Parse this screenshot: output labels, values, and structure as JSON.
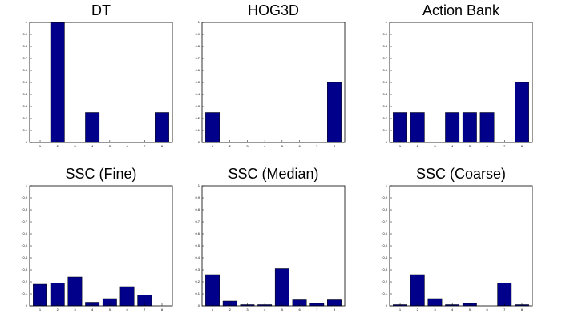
{
  "chart_data": [
    {
      "type": "bar",
      "title": "DT",
      "x": [
        1,
        2,
        3,
        4,
        5,
        6,
        7,
        8
      ],
      "values": [
        0,
        1,
        0,
        0.25,
        0,
        0,
        0,
        0.25
      ],
      "color": "#00008b",
      "xlim": [
        0.4,
        8.6
      ],
      "xticks": [
        1,
        2,
        3,
        4,
        5,
        6,
        7,
        8
      ],
      "ylim": [
        0,
        1
      ],
      "yticks": [
        0,
        0.1,
        0.2,
        0.3,
        0.4,
        0.5,
        0.6,
        0.7,
        0.8,
        0.9,
        1
      ]
    },
    {
      "type": "bar",
      "title": "HOG3D",
      "x": [
        1,
        2,
        3,
        4,
        5,
        6,
        7,
        8
      ],
      "values": [
        0.25,
        0,
        0,
        0,
        0,
        0,
        0,
        0.5
      ],
      "color": "#00008b",
      "xlim": [
        0.4,
        8.6
      ],
      "xticks": [
        1,
        2,
        3,
        4,
        5,
        6,
        7,
        8
      ],
      "ylim": [
        0,
        1
      ],
      "yticks": [
        0,
        0.1,
        0.2,
        0.3,
        0.4,
        0.5,
        0.6,
        0.7,
        0.8,
        0.9,
        1
      ]
    },
    {
      "type": "bar",
      "title": "Action Bank",
      "x": [
        1,
        2,
        3,
        4,
        5,
        6,
        7,
        8
      ],
      "values": [
        0.25,
        0.25,
        0,
        0.25,
        0.25,
        0.25,
        0,
        0.5
      ],
      "color": "#00008b",
      "xlim": [
        0.4,
        8.6
      ],
      "xticks": [
        1,
        2,
        3,
        4,
        5,
        6,
        7,
        8
      ],
      "ylim": [
        0,
        1
      ],
      "yticks": [
        0,
        0.1,
        0.2,
        0.3,
        0.4,
        0.5,
        0.6,
        0.7,
        0.8,
        0.9,
        1
      ]
    },
    {
      "type": "bar",
      "title": "SSC (Fine)",
      "x": [
        1,
        2,
        3,
        4,
        5,
        6,
        7,
        8
      ],
      "values": [
        0.18,
        0.19,
        0.24,
        0.03,
        0.06,
        0.16,
        0.09,
        0
      ],
      "color": "#00008b",
      "xlim": [
        0.4,
        8.6
      ],
      "xticks": [
        1,
        2,
        3,
        4,
        5,
        6,
        7,
        8
      ],
      "ylim": [
        0,
        1
      ],
      "yticks": [
        0,
        0.1,
        0.2,
        0.3,
        0.4,
        0.5,
        0.6,
        0.7,
        0.8,
        0.9,
        1
      ]
    },
    {
      "type": "bar",
      "title": "SSC (Median)",
      "x": [
        1,
        2,
        3,
        4,
        5,
        6,
        7,
        8
      ],
      "values": [
        0.26,
        0.04,
        0.01,
        0.01,
        0.31,
        0.05,
        0.02,
        0.05
      ],
      "color": "#00008b",
      "xlim": [
        0.4,
        8.6
      ],
      "xticks": [
        1,
        2,
        3,
        4,
        5,
        6,
        7,
        8
      ],
      "ylim": [
        0,
        1
      ],
      "yticks": [
        0,
        0.1,
        0.2,
        0.3,
        0.4,
        0.5,
        0.6,
        0.7,
        0.8,
        0.9,
        1
      ]
    },
    {
      "type": "bar",
      "title": "SSC (Coarse)",
      "x": [
        1,
        2,
        3,
        4,
        5,
        6,
        7,
        8
      ],
      "values": [
        0.01,
        0.26,
        0.06,
        0.01,
        0.02,
        0,
        0.19,
        0.01
      ],
      "color": "#00008b",
      "xlim": [
        0.4,
        8.6
      ],
      "xticks": [
        1,
        2,
        3,
        4,
        5,
        6,
        7,
        8
      ],
      "ylim": [
        0,
        1
      ],
      "yticks": [
        0,
        0.1,
        0.2,
        0.3,
        0.4,
        0.5,
        0.6,
        0.7,
        0.8,
        0.9,
        1
      ]
    }
  ]
}
